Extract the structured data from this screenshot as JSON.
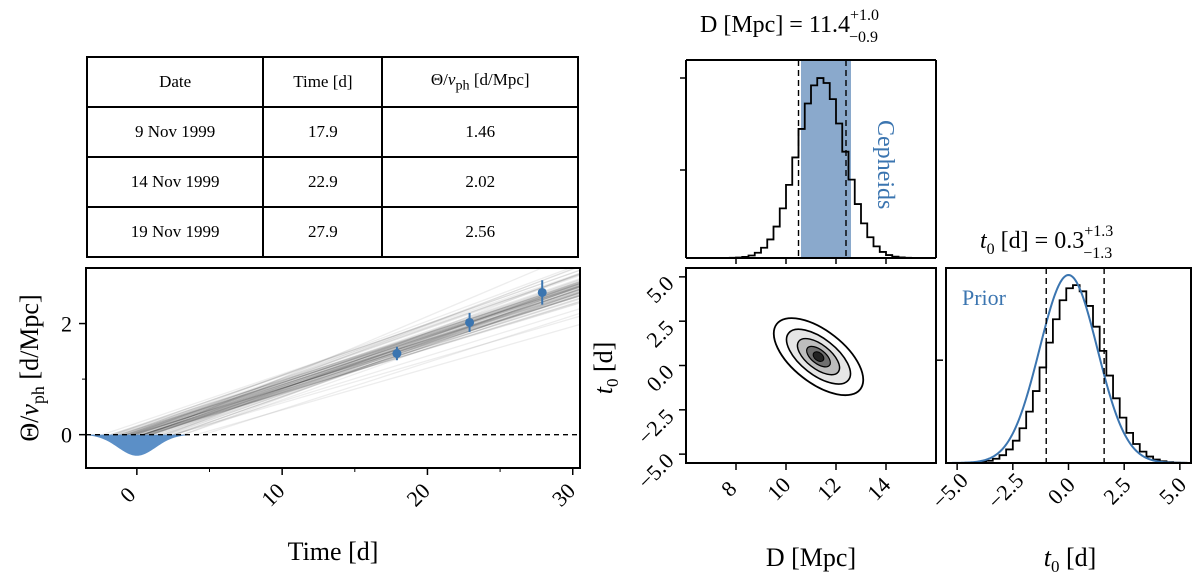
{
  "table": {
    "headers": [
      "Date",
      "Time [d]",
      "Θ/v_ph [d/Mpc]"
    ],
    "rows": [
      [
        "9 Nov 1999",
        "17.9",
        "1.46"
      ],
      [
        "14 Nov 1999",
        "22.9",
        "2.02"
      ],
      [
        "19 Nov 1999",
        "27.9",
        "2.56"
      ]
    ]
  },
  "chart_data": [
    {
      "type": "line",
      "name": "theta-vs-time",
      "xlabel": "Time [d]",
      "ylabel": "Θ/v_ph [d/Mpc]",
      "xlim": [
        -3.5,
        30.5
      ],
      "ylim": [
        -0.6,
        3.0
      ],
      "xticks": [
        "0",
        "10",
        "20",
        "30"
      ],
      "yticks": [
        "0",
        "2"
      ],
      "points": [
        {
          "x": 17.9,
          "y": 1.46,
          "err": 0.12
        },
        {
          "x": 22.9,
          "y": 2.02,
          "err": 0.17
        },
        {
          "x": 27.9,
          "y": 2.56,
          "err": 0.22
        }
      ],
      "fit": {
        "slope_center": 0.0875,
        "x0_center": 0.3,
        "slope_spread": 0.006,
        "x0_spread": 1.3
      },
      "reference_line_y": 0,
      "prior_shade": {
        "peak_x": 0,
        "depth": -0.38,
        "width": 1.3
      }
    },
    {
      "type": "histogram",
      "name": "D-marginal",
      "title_main": "D [Mpc] = 11.4",
      "title_sup": "+1.0",
      "title_sub": "−0.9",
      "xlim": [
        6.0,
        16.0
      ],
      "quantile_lines": [
        10.5,
        12.4
      ],
      "median": 11.4,
      "sigma": 0.95,
      "band": {
        "label": "Cepheids",
        "range": [
          10.6,
          12.6
        ]
      }
    },
    {
      "type": "heatmap",
      "name": "D-t0-joint",
      "xlabel": "D [Mpc]",
      "ylabel": "t_0 [d]",
      "xlim": [
        6.0,
        16.0
      ],
      "ylim": [
        -5.5,
        5.5
      ],
      "xticks": [
        "8",
        "10",
        "12",
        "14"
      ],
      "yticks": [
        "5.0",
        "2.5",
        "0.0",
        "−2.5",
        "−5.0"
      ],
      "center": [
        11.3,
        0.5
      ],
      "correlation": -0.55
    },
    {
      "type": "histogram",
      "name": "t0-marginal",
      "title_main": "t₀ [d] = 0.3",
      "title_sup": "+1.3",
      "title_sub": "−1.3",
      "xlabel": "t_0 [d]",
      "xlim": [
        -5.5,
        5.5
      ],
      "xticks": [
        "−5.0",
        "−2.5",
        "0.0",
        "2.5",
        "5.0"
      ],
      "quantile_lines": [
        -1.0,
        1.6
      ],
      "median": 0.3,
      "sigma": 1.3,
      "prior": {
        "label": "Prior",
        "mean": 0.0,
        "sigma": 1.3
      }
    }
  ],
  "colors": {
    "accent": "#3b75b0",
    "band": "#8aa9cc",
    "shade": "#5b8fc7"
  }
}
